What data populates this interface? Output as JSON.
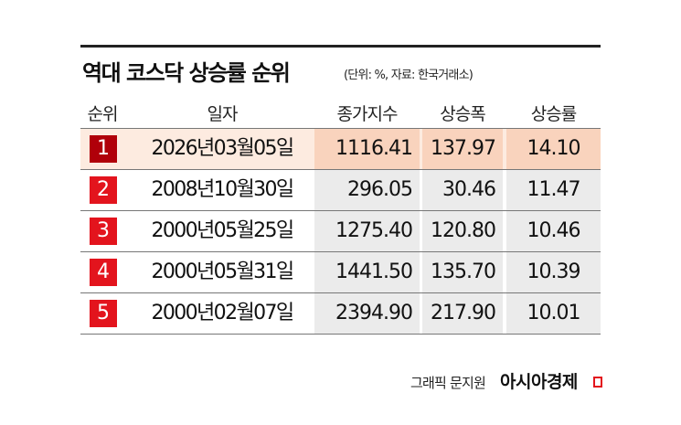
{
  "title": "역대 코스닥 상승률 순위",
  "subtitle": "(단위: %, 자료: 한국거래소)",
  "headers": [
    "순위",
    "일자",
    "종가지수",
    "상승폭",
    "상승률"
  ],
  "rows": [
    {
      "rank": "1",
      "date": "2026년03월05일",
      "close": "1116.41",
      "change": "137.97",
      "rate": "14.10"
    },
    {
      "rank": "2",
      "date": "2008년10월30일",
      "close": "296.05",
      "change": "30.46",
      "rate": "11.47"
    },
    {
      "rank": "3",
      "date": "2000년05월25일",
      "close": "1275.40",
      "change": "120.80",
      "rate": "10.46"
    },
    {
      "rank": "4",
      "date": "2000년05월31일",
      "close": "1441.50",
      "change": "135.70",
      "rate": "10.39"
    },
    {
      "rank": "5",
      "date": "2000년02월07일",
      "close": "2394.90",
      "change": "217.90",
      "rate": "10.01"
    }
  ],
  "credit": "그래픽 문지원",
  "brand": "아시아경제",
  "colors": {
    "badge": "#e3141d",
    "badge_top": "#b0000a",
    "highlight": "#f9d3bd"
  }
}
